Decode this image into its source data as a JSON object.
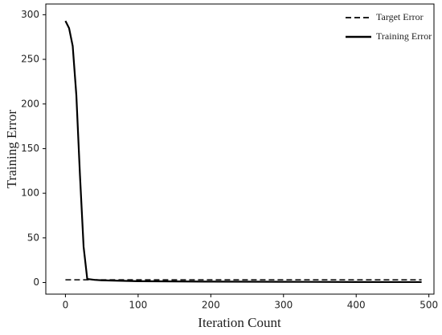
{
  "chart_data": {
    "type": "line",
    "xlabel": "Iteration Count",
    "ylabel": "Training Error",
    "x": [
      0,
      5,
      10,
      15,
      20,
      25,
      30,
      40,
      50,
      100,
      200,
      300,
      400,
      490
    ],
    "series": [
      {
        "name": "Target Error",
        "color": "#000000",
        "dash": true,
        "values": [
          3,
          3,
          3,
          3,
          3,
          3,
          3,
          3,
          3,
          3,
          3,
          3,
          3,
          3
        ]
      },
      {
        "name": "Training Error",
        "color": "#000000",
        "dash": false,
        "values": [
          293,
          285,
          265,
          210,
          120,
          40,
          4,
          3,
          2.5,
          1.5,
          1,
          0.8,
          0.6,
          0.5
        ]
      }
    ],
    "xlim": [
      -27,
      507
    ],
    "xticks": [
      0,
      100,
      200,
      300,
      400,
      500
    ],
    "ylim": [
      -13,
      312
    ],
    "yticks": [
      0,
      50,
      100,
      150,
      200,
      250,
      300
    ],
    "legend": "upper right",
    "grid": false
  }
}
